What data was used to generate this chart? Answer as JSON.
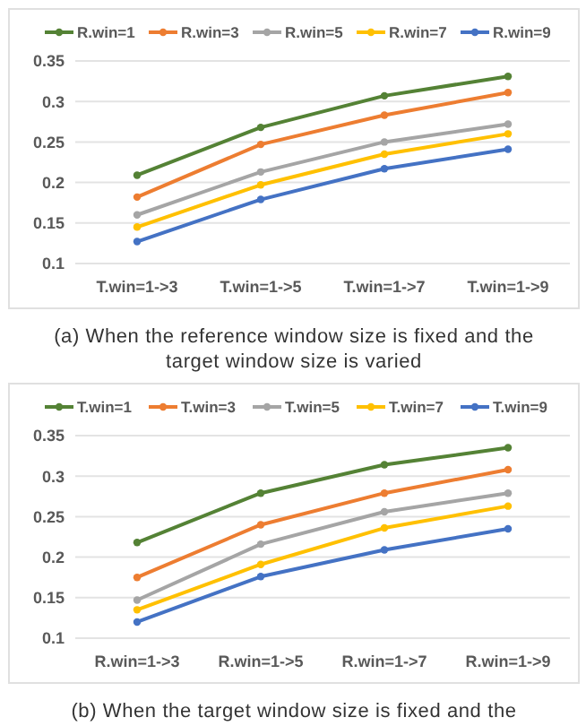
{
  "chart_data": [
    {
      "type": "line",
      "categories": [
        "T.win=1->3",
        "T.win=1->5",
        "T.win=1->7",
        "T.win=1->9"
      ],
      "ylim": [
        0.1,
        0.35
      ],
      "yticks": [
        0.1,
        0.15,
        0.2,
        0.25,
        0.3,
        0.35
      ],
      "grid": "y",
      "legend": "top",
      "marker": "circle",
      "line_style": "solid",
      "annotations": [
        "(a) When the reference window size is fixed and the target window size is varied"
      ],
      "series": [
        {
          "name": "R.win=1",
          "color": "#548235",
          "values": [
            0.209,
            0.268,
            0.307,
            0.331
          ]
        },
        {
          "name": "R.win=3",
          "color": "#ed7d31",
          "values": [
            0.182,
            0.247,
            0.283,
            0.311
          ]
        },
        {
          "name": "R.win=5",
          "color": "#a5a5a5",
          "values": [
            0.16,
            0.213,
            0.25,
            0.272
          ]
        },
        {
          "name": "R.win=7",
          "color": "#ffc000",
          "values": [
            0.145,
            0.197,
            0.235,
            0.26
          ]
        },
        {
          "name": "R.win=9",
          "color": "#4472c4",
          "values": [
            0.127,
            0.179,
            0.217,
            0.241
          ]
        }
      ]
    },
    {
      "type": "line",
      "categories": [
        "R.win=1->3",
        "R.win=1->5",
        "R.win=1->7",
        "R.win=1->9"
      ],
      "ylim": [
        0.1,
        0.35
      ],
      "yticks": [
        0.1,
        0.15,
        0.2,
        0.25,
        0.3,
        0.35
      ],
      "grid": "y",
      "legend": "top",
      "marker": "circle",
      "line_style": "solid",
      "annotations": [
        "(b) When the target window size is fixed and the"
      ],
      "series": [
        {
          "name": "T.win=1",
          "color": "#548235",
          "values": [
            0.218,
            0.279,
            0.314,
            0.335
          ]
        },
        {
          "name": "T.win=3",
          "color": "#ed7d31",
          "values": [
            0.175,
            0.24,
            0.279,
            0.308
          ]
        },
        {
          "name": "T.win=5",
          "color": "#a5a5a5",
          "values": [
            0.147,
            0.216,
            0.256,
            0.279
          ]
        },
        {
          "name": "T.win=7",
          "color": "#ffc000",
          "values": [
            0.135,
            0.191,
            0.236,
            0.263
          ]
        },
        {
          "name": "T.win=9",
          "color": "#4472c4",
          "values": [
            0.12,
            0.176,
            0.209,
            0.235
          ]
        }
      ]
    }
  ]
}
